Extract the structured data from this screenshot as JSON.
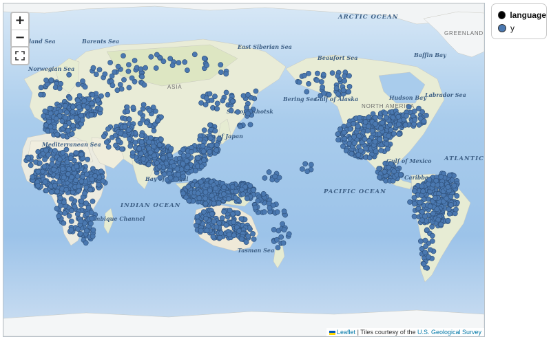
{
  "map": {
    "tile_source": "USGS National Map imagery/topo basemap",
    "marker_color": "#4a78b0",
    "ocean_labels": [
      "ARCTIC OCEAN",
      "ATLANTIC OCEAN",
      "PACIFIC OCEAN",
      "INDIAN OCEAN"
    ],
    "sea_labels": [
      "Greenland Sea",
      "Barents Sea",
      "Norwegian Sea",
      "East Siberian Sea",
      "Sea of Okhotsk",
      "Sea of Japan",
      "Bay of Bengal",
      "Mozambique Channel",
      "Tasman Sea",
      "Beaufort Sea",
      "Bering Sea",
      "Gulf of Alaska",
      "Hudson Bay",
      "Baffin Bay",
      "Labrador Sea",
      "Gulf of Mexico",
      "Caribbean Sea",
      "Mediterranean Sea"
    ],
    "land_labels": [
      "ASIA",
      "NORTH AMERICA",
      "GREENLAND"
    ]
  },
  "controls": {
    "zoom_in": "+",
    "zoom_out": "−"
  },
  "attribution": {
    "leaflet_link": "Leaflet",
    "separator": " | ",
    "tiles_text": "Tiles courtesy of the ",
    "usgs_link": "U.S. Geological Survey"
  },
  "legend": {
    "title": "language",
    "title_color": "#000000",
    "entries": [
      {
        "label": "y",
        "color": "#4a78b0"
      }
    ]
  }
}
